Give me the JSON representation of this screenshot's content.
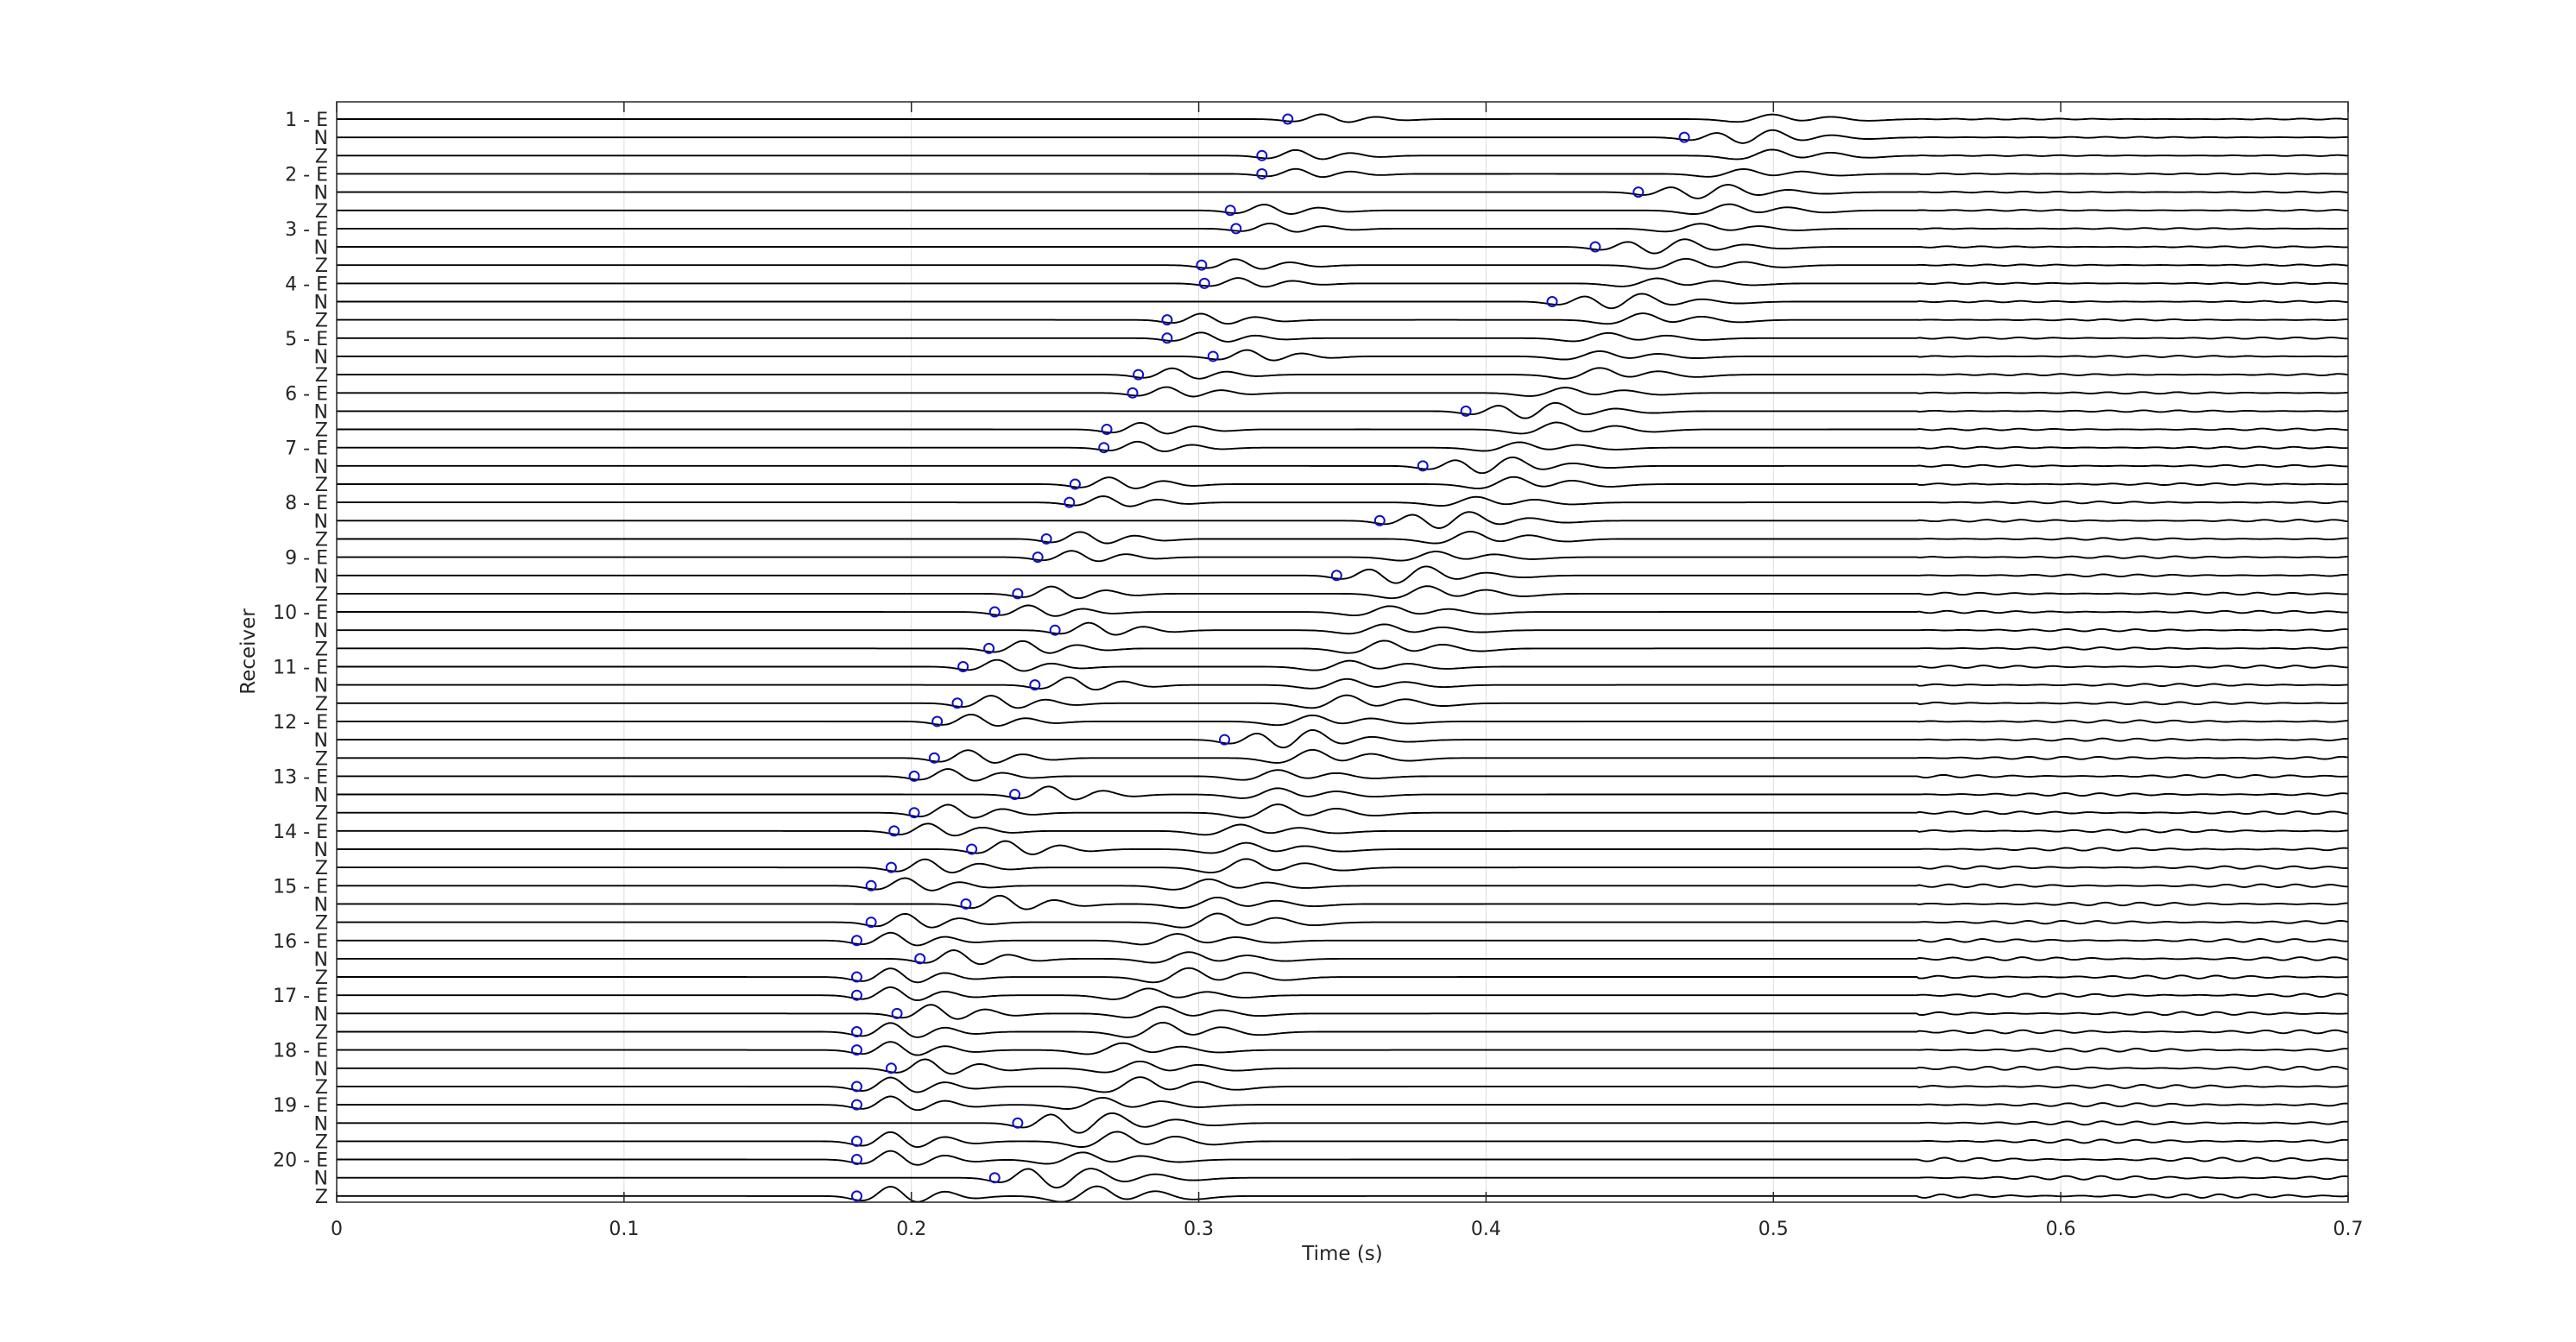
{
  "chart_data": {
    "type": "line",
    "xlabel": "Time (s)",
    "ylabel": "Receiver",
    "xlim": [
      0,
      0.7
    ],
    "xticks": [
      0,
      0.1,
      0.2,
      0.3,
      0.4,
      0.5,
      0.6,
      0.7
    ],
    "xtick_labels": [
      "0",
      "0.1",
      "0.2",
      "0.3",
      "0.4",
      "0.5",
      "0.6",
      "0.7"
    ],
    "grid": true,
    "components": [
      "E",
      "N",
      "Z"
    ],
    "receivers": [
      {
        "label": "1 - E",
        "picks": {
          "E": 0.331,
          "N": 0.469,
          "Z": 0.322
        }
      },
      {
        "label": "2 - E",
        "picks": {
          "E": 0.322,
          "N": 0.453,
          "Z": 0.311
        }
      },
      {
        "label": "3 - E",
        "picks": {
          "E": 0.313,
          "N": 0.438,
          "Z": 0.301
        }
      },
      {
        "label": "4 - E",
        "picks": {
          "E": 0.302,
          "N": 0.423,
          "Z": 0.289
        }
      },
      {
        "label": "5 - E",
        "picks": {
          "E": 0.289,
          "N": 0.305,
          "Z": 0.279
        }
      },
      {
        "label": "6 - E",
        "picks": {
          "E": 0.277,
          "N": 0.393,
          "Z": 0.268
        }
      },
      {
        "label": "7 - E",
        "picks": {
          "E": 0.267,
          "N": 0.378,
          "Z": 0.257
        }
      },
      {
        "label": "8 - E",
        "picks": {
          "E": 0.255,
          "N": 0.363,
          "Z": 0.247
        }
      },
      {
        "label": "9 - E",
        "picks": {
          "E": 0.244,
          "N": 0.348,
          "Z": 0.237
        }
      },
      {
        "label": "10 - E",
        "picks": {
          "E": 0.229,
          "N": 0.25,
          "Z": 0.227
        }
      },
      {
        "label": "11 - E",
        "picks": {
          "E": 0.218,
          "N": 0.243,
          "Z": 0.216
        }
      },
      {
        "label": "12 - E",
        "picks": {
          "E": 0.209,
          "N": 0.309,
          "Z": 0.208
        }
      },
      {
        "label": "13 - E",
        "picks": {
          "E": 0.201,
          "N": 0.236,
          "Z": 0.201
        }
      },
      {
        "label": "14 - E",
        "picks": {
          "E": 0.194,
          "N": 0.221,
          "Z": 0.193
        }
      },
      {
        "label": "15 - E",
        "picks": {
          "E": 0.186,
          "N": 0.219,
          "Z": 0.186
        }
      },
      {
        "label": "16 - E",
        "picks": {
          "E": 0.181,
          "N": 0.203,
          "Z": 0.181
        }
      },
      {
        "label": "17 - E",
        "picks": {
          "E": 0.181,
          "N": 0.195,
          "Z": 0.181
        }
      },
      {
        "label": "18 - E",
        "picks": {
          "E": 0.181,
          "N": 0.193,
          "Z": 0.181
        }
      },
      {
        "label": "19 - E",
        "picks": {
          "E": 0.181,
          "N": 0.237,
          "Z": 0.181
        }
      },
      {
        "label": "20 - E",
        "picks": {
          "E": 0.181,
          "N": 0.229,
          "Z": 0.181
        }
      }
    ],
    "arrivals": {
      "E_second": [
        0.49,
        0.48,
        0.465,
        0.45,
        0.433,
        0.418,
        0.402,
        0.387,
        0.373,
        0.357,
        0.343,
        0.33,
        0.318,
        0.305,
        0.294,
        0.283,
        0.273,
        0.264,
        0.257,
        0.25
      ],
      "N_second": [
        0.49,
        0.475,
        0.46,
        0.445,
        0.43,
        0.415,
        0.4,
        0.385,
        0.37,
        0.355,
        0.342,
        0.33,
        0.318,
        0.307,
        0.297,
        0.287,
        0.278,
        0.27,
        0.262,
        0.255
      ]
    },
    "pick_marker_color": "#1010c8",
    "trace_color": "#000000"
  }
}
